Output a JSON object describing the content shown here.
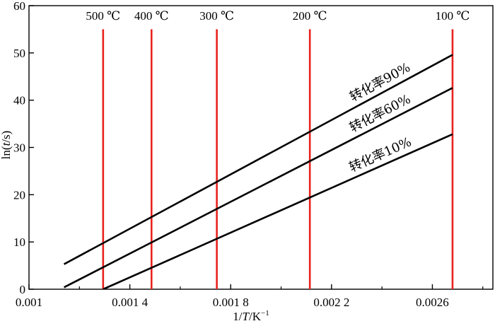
{
  "chart_data": {
    "type": "line",
    "xlabel": "1/T/K⁻¹",
    "ylabel": "ln(t/s)",
    "xlim": [
      0.001,
      0.00284
    ],
    "ylim": [
      0,
      60
    ],
    "x_ticks": [
      {
        "value": 0.001,
        "label": "0.001"
      },
      {
        "value": 0.0014,
        "label": "0.001 4"
      },
      {
        "value": 0.0018,
        "label": "0.001 8"
      },
      {
        "value": 0.0022,
        "label": "0.002 2"
      },
      {
        "value": 0.0026,
        "label": "0.0026"
      }
    ],
    "y_ticks": [
      {
        "value": 0,
        "label": "0"
      },
      {
        "value": 10,
        "label": "10"
      },
      {
        "value": 20,
        "label": "20"
      },
      {
        "value": 30,
        "label": "30"
      },
      {
        "value": 40,
        "label": "40"
      },
      {
        "value": 50,
        "label": "50"
      },
      {
        "value": 60,
        "label": "60"
      }
    ],
    "grid": false,
    "series": [
      {
        "name": "转化率90%",
        "x": [
          0.001139,
          0.00268
        ],
        "y": [
          5.3,
          49.6
        ]
      },
      {
        "name": "转化率60%",
        "x": [
          0.001139,
          0.00268
        ],
        "y": [
          0.4,
          42.6
        ]
      },
      {
        "name": "转化率10%",
        "x": [
          0.001294,
          0.00268
        ],
        "y": [
          0,
          32.8
        ]
      }
    ],
    "temperature_lines": [
      {
        "label": "500 ℃",
        "x": 0.001294,
        "color": "#e8231e"
      },
      {
        "label": "400 ℃",
        "x": 0.001486,
        "color": "#e8231e"
      },
      {
        "label": "300 ℃",
        "x": 0.001745,
        "color": "#e8231e"
      },
      {
        "label": "200 ℃",
        "x": 0.002114,
        "color": "#e8231e"
      },
      {
        "label": "100 ℃",
        "x": 0.00268,
        "color": "#e8231e"
      }
    ],
    "line_color": "#000000"
  }
}
